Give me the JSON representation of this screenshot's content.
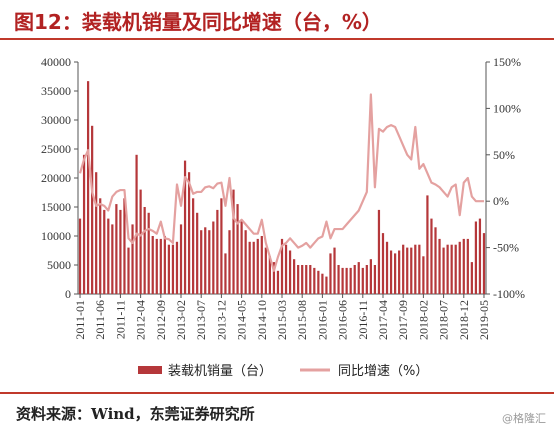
{
  "title": "图12：装载机销量及同比增速（台，%）",
  "source": "资料来源：Wind，东莞证券研究所",
  "watermark": "@格隆汇",
  "colors": {
    "bar": "#b5373a",
    "line": "#e4a1a0",
    "accent": "#c0392b"
  },
  "chart_data": {
    "type": "bar",
    "x": [
      "2011-01",
      "2011-02",
      "2011-03",
      "2011-04",
      "2011-05",
      "2011-06",
      "2011-07",
      "2011-08",
      "2011-09",
      "2011-10",
      "2011-11",
      "2011-12",
      "2012-01",
      "2012-02",
      "2012-03",
      "2012-04",
      "2012-05",
      "2012-06",
      "2012-07",
      "2012-08",
      "2012-09",
      "2012-10",
      "2012-11",
      "2012-12",
      "2013-01",
      "2013-02",
      "2013-03",
      "2013-04",
      "2013-05",
      "2013-06",
      "2013-07",
      "2013-08",
      "2013-09",
      "2013-10",
      "2013-11",
      "2013-12",
      "2014-01",
      "2014-02",
      "2014-03",
      "2014-04",
      "2014-05",
      "2014-06",
      "2014-07",
      "2014-08",
      "2014-09",
      "2014-10",
      "2014-11",
      "2014-12",
      "2015-01",
      "2015-02",
      "2015-03",
      "2015-04",
      "2015-05",
      "2015-06",
      "2015-07",
      "2015-08",
      "2015-09",
      "2015-10",
      "2015-11",
      "2015-12",
      "2016-01",
      "2016-02",
      "2016-03",
      "2016-04",
      "2016-05",
      "2016-06",
      "2016-07",
      "2016-08",
      "2016-09",
      "2016-10",
      "2016-11",
      "2016-12",
      "2017-01",
      "2017-02",
      "2017-03",
      "2017-04",
      "2017-05",
      "2017-06",
      "2017-07",
      "2017-08",
      "2017-09",
      "2017-10",
      "2017-11",
      "2017-12",
      "2018-01",
      "2018-02",
      "2018-03",
      "2018-04",
      "2018-05",
      "2018-06",
      "2018-07",
      "2018-08",
      "2018-09",
      "2018-10",
      "2018-11",
      "2018-12",
      "2019-01",
      "2019-02",
      "2019-03",
      "2019-04",
      "2019-05"
    ],
    "x_tick_labels": [
      "2011-01",
      "2011-06",
      "2011-11",
      "2012-04",
      "2012-09",
      "2013-02",
      "2013-07",
      "2013-12",
      "2014-05",
      "2014-10",
      "2015-03",
      "2015-08",
      "2016-01",
      "2016-06",
      "2016-11",
      "2017-04",
      "2017-09",
      "2018-02",
      "2018-07",
      "2018-12",
      "2019-05"
    ],
    "series": [
      {
        "name": "装载机销量（台）",
        "type": "bar",
        "axis": "left",
        "values": [
          13000,
          24000,
          36700,
          29000,
          21000,
          16500,
          14500,
          13000,
          12000,
          15500,
          14500,
          16500,
          8000,
          12000,
          24000,
          18000,
          15000,
          14000,
          10000,
          9500,
          9500,
          10000,
          8500,
          8500,
          9000,
          12000,
          23000,
          21000,
          16500,
          14000,
          11000,
          11500,
          11000,
          12500,
          14500,
          16500,
          7000,
          11000,
          18000,
          15500,
          12500,
          11000,
          9000,
          9000,
          9500,
          10000,
          8000,
          6500,
          5500,
          4000,
          9500,
          8500,
          7500,
          6000,
          5000,
          5000,
          5000,
          5000,
          4500,
          4000,
          3500,
          3000,
          7000,
          8000,
          5000,
          4500,
          4500,
          4500,
          5000,
          5500,
          4500,
          5000,
          6000,
          5000,
          14500,
          10500,
          9000,
          7500,
          7000,
          7500,
          8500,
          8000,
          8000,
          8500,
          8500,
          6500,
          17000,
          13000,
          11500,
          9500,
          8000,
          8500,
          8500,
          8500,
          9000,
          9500,
          9500,
          5500,
          12500,
          13000,
          10500
        ]
      },
      {
        "name": "同比增速（%）",
        "type": "line",
        "axis": "right",
        "values": [
          30,
          45,
          55,
          10,
          -5,
          -3,
          -5,
          -10,
          5,
          10,
          12,
          12,
          -40,
          -45,
          -35,
          -37,
          -32,
          -30,
          -32,
          -35,
          -22,
          -40,
          -41,
          -45,
          18,
          -5,
          26,
          20,
          8,
          10,
          10,
          15,
          16,
          14,
          19,
          20,
          -5,
          25,
          -18,
          -24,
          -20,
          -25,
          -30,
          -35,
          -35,
          -20,
          -45,
          -60,
          -75,
          -60,
          -48,
          -45,
          -40,
          -45,
          -50,
          -48,
          -45,
          -50,
          -45,
          -40,
          -38,
          -22,
          -40,
          -30,
          -30,
          -30,
          -25,
          -20,
          -15,
          -10,
          0,
          10,
          115,
          15,
          78,
          75,
          80,
          82,
          80,
          70,
          60,
          50,
          45,
          80,
          35,
          40,
          30,
          20,
          18,
          15,
          10,
          5,
          15,
          18,
          -15,
          20,
          25,
          5,
          0,
          0,
          0
        ]
      }
    ],
    "y_left": {
      "min": 0,
      "max": 40000,
      "ticks": [
        "0",
        "5000",
        "10000",
        "15000",
        "20000",
        "25000",
        "30000",
        "35000",
        "40000"
      ]
    },
    "y_right": {
      "min": -100,
      "max": 150,
      "ticks": [
        "-100%",
        "-50%",
        "0%",
        "50%",
        "100%",
        "150%"
      ]
    },
    "legend": {
      "position": "bottom",
      "items": [
        "装载机销量（台）",
        "同比增速（%）"
      ]
    },
    "grid": false
  }
}
